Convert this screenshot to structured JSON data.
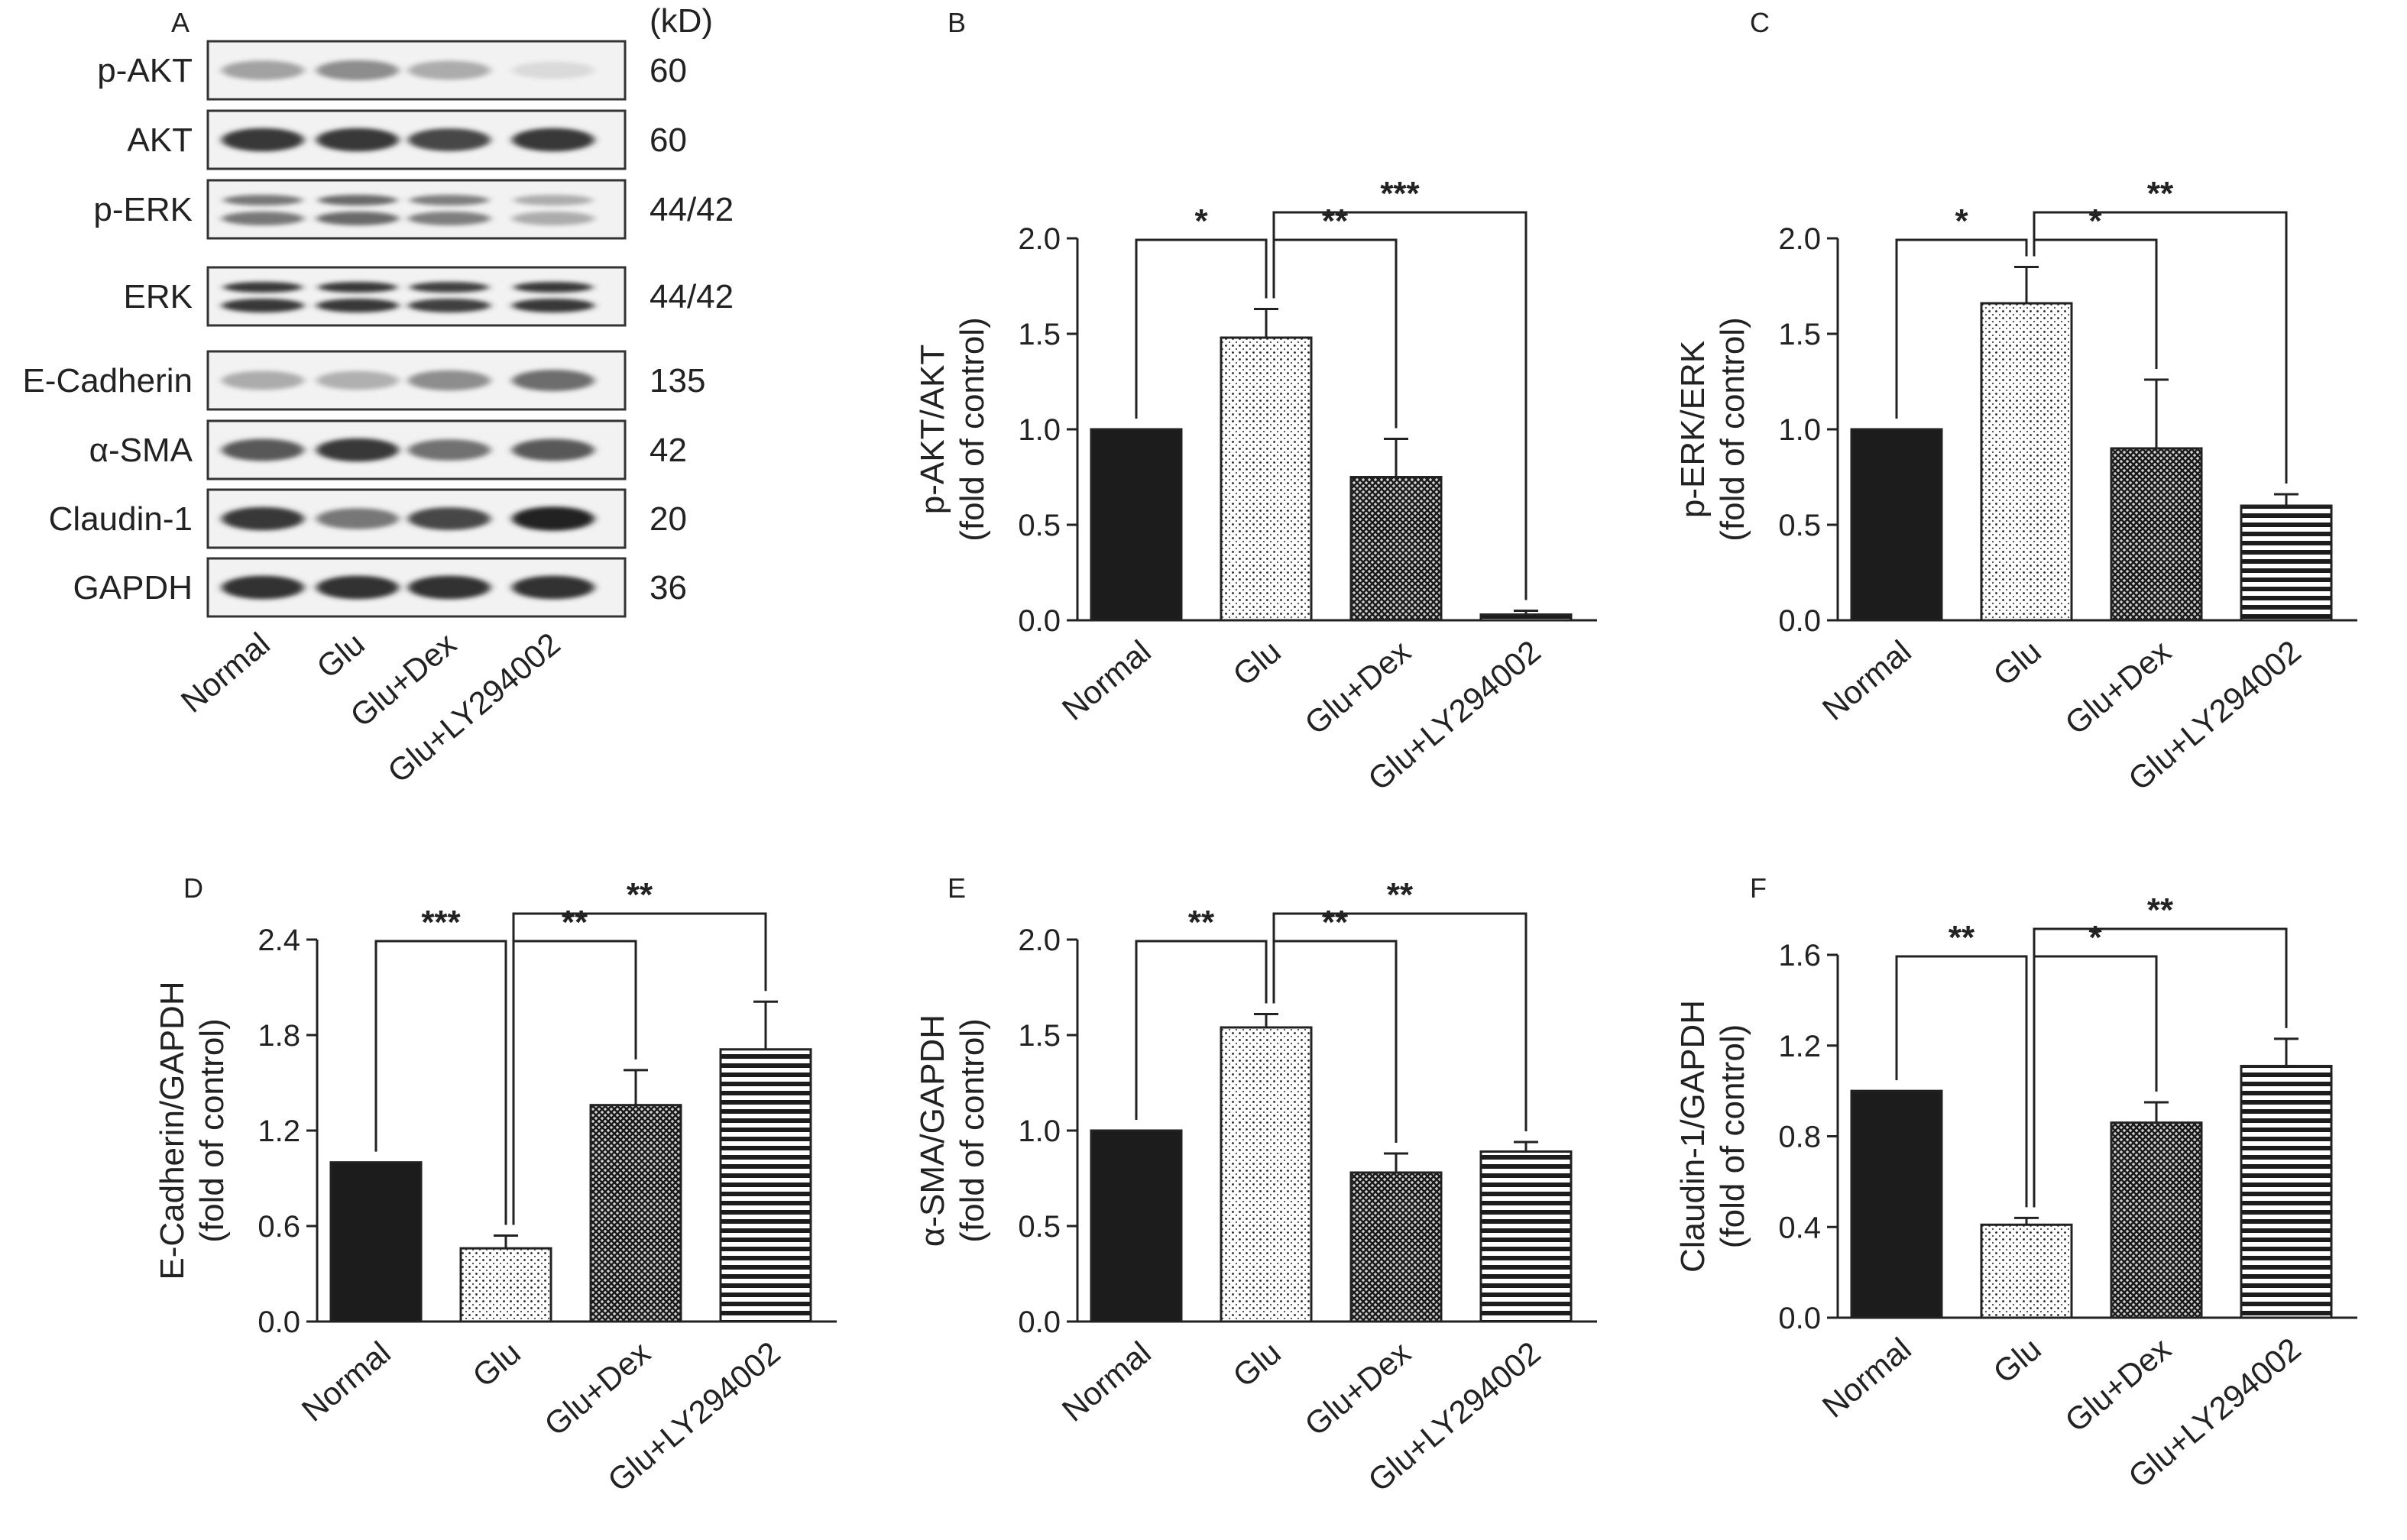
{
  "panel_A": {
    "letter": "A",
    "unit_header": "(kD)",
    "lanes": [
      "Normal",
      "Glu",
      "Glu+Dex",
      "Glu+LY294002"
    ],
    "blots": [
      {
        "label": "p-AKT",
        "kd": "60",
        "intensity": [
          0.35,
          0.45,
          0.3,
          0.08
        ]
      },
      {
        "label": "AKT",
        "kd": "60",
        "intensity": [
          0.85,
          0.85,
          0.78,
          0.85
        ]
      },
      {
        "label": "p-ERK",
        "kd": "44/42",
        "intensity": [
          0.55,
          0.62,
          0.52,
          0.3
        ]
      },
      {
        "label": "ERK",
        "kd": "44/42",
        "intensity": [
          0.85,
          0.85,
          0.82,
          0.85
        ]
      },
      {
        "label": "E-Cadherin",
        "kd": "135",
        "intensity": [
          0.3,
          0.28,
          0.45,
          0.6
        ]
      },
      {
        "label": "α-SMA",
        "kd": "42",
        "intensity": [
          0.7,
          0.85,
          0.58,
          0.7
        ]
      },
      {
        "label": "Claudin-1",
        "kd": "20",
        "intensity": [
          0.85,
          0.55,
          0.78,
          0.95
        ]
      },
      {
        "label": "GAPDH",
        "kd": "36",
        "intensity": [
          0.88,
          0.88,
          0.88,
          0.88
        ]
      }
    ]
  },
  "chart_data": [
    {
      "panel": "B",
      "type": "bar",
      "ylabel": [
        "p-AKT/AKT",
        "(fold of control)"
      ],
      "categories": [
        "Normal",
        "Glu",
        "Glu+Dex",
        "Glu+LY294002"
      ],
      "values": [
        1.0,
        1.48,
        0.75,
        0.03
      ],
      "errors": [
        0.0,
        0.15,
        0.2,
        0.02
      ],
      "ylim": [
        0,
        2.0
      ],
      "yticks": [
        "0.0",
        "0.5",
        "1.0",
        "1.5",
        "2.0"
      ],
      "comparisons": [
        {
          "from": 0,
          "to": 1,
          "label": "*"
        },
        {
          "from": 1,
          "to": 2,
          "label": "**"
        },
        {
          "from": 1,
          "to": 3,
          "label": "***"
        }
      ]
    },
    {
      "panel": "C",
      "type": "bar",
      "ylabel": [
        "p-ERK/ERK",
        "(fold of control)"
      ],
      "categories": [
        "Normal",
        "Glu",
        "Glu+Dex",
        "Glu+LY294002"
      ],
      "values": [
        1.0,
        1.66,
        0.9,
        0.6
      ],
      "errors": [
        0.0,
        0.19,
        0.36,
        0.06
      ],
      "ylim": [
        0,
        2.0
      ],
      "yticks": [
        "0.0",
        "0.5",
        "1.0",
        "1.5",
        "2.0"
      ],
      "comparisons": [
        {
          "from": 0,
          "to": 1,
          "label": "*"
        },
        {
          "from": 1,
          "to": 2,
          "label": "*"
        },
        {
          "from": 1,
          "to": 3,
          "label": "**"
        }
      ]
    },
    {
      "panel": "D",
      "type": "bar",
      "ylabel": [
        "E-Cadherin/GAPDH",
        "(fold of control)"
      ],
      "categories": [
        "Normal",
        "Glu",
        "Glu+Dex",
        "Glu+LY294002"
      ],
      "values": [
        1.0,
        0.46,
        1.36,
        1.71
      ],
      "errors": [
        0.0,
        0.08,
        0.22,
        0.3
      ],
      "ylim": [
        0,
        2.4
      ],
      "yticks": [
        "0.0",
        "0.6",
        "1.2",
        "1.8",
        "2.4"
      ],
      "comparisons": [
        {
          "from": 0,
          "to": 1,
          "label": "***"
        },
        {
          "from": 1,
          "to": 2,
          "label": "**"
        },
        {
          "from": 1,
          "to": 3,
          "label": "**"
        }
      ]
    },
    {
      "panel": "E",
      "type": "bar",
      "ylabel": [
        "α-SMA/GAPDH",
        "(fold of control)"
      ],
      "categories": [
        "Normal",
        "Glu",
        "Glu+Dex",
        "Glu+LY294002"
      ],
      "values": [
        1.0,
        1.54,
        0.78,
        0.89
      ],
      "errors": [
        0.0,
        0.07,
        0.1,
        0.05
      ],
      "ylim": [
        0,
        2.0
      ],
      "yticks": [
        "0.0",
        "0.5",
        "1.0",
        "1.5",
        "2.0"
      ],
      "comparisons": [
        {
          "from": 0,
          "to": 1,
          "label": "**"
        },
        {
          "from": 1,
          "to": 2,
          "label": "**"
        },
        {
          "from": 1,
          "to": 3,
          "label": "**"
        }
      ]
    },
    {
      "panel": "F",
      "type": "bar",
      "ylabel": [
        "Claudin-1/GAPDH",
        "(fold of control)"
      ],
      "categories": [
        "Normal",
        "Glu",
        "Glu+Dex",
        "Glu+LY294002"
      ],
      "values": [
        1.0,
        0.41,
        0.86,
        1.11
      ],
      "errors": [
        0.0,
        0.03,
        0.09,
        0.12
      ],
      "ylim": [
        0,
        1.6
      ],
      "yticks": [
        "0.0",
        "0.4",
        "0.8",
        "1.2",
        "1.6"
      ],
      "comparisons": [
        {
          "from": 0,
          "to": 1,
          "label": "**"
        },
        {
          "from": 1,
          "to": 2,
          "label": "*"
        },
        {
          "from": 1,
          "to": 3,
          "label": "**"
        }
      ]
    }
  ],
  "bar_fills": [
    "solid",
    "dots",
    "crosshatch",
    "horizontal-lines"
  ],
  "colors": {
    "ink": "#222222",
    "bar_solid": "#1c1c1c",
    "background": "#ffffff"
  }
}
